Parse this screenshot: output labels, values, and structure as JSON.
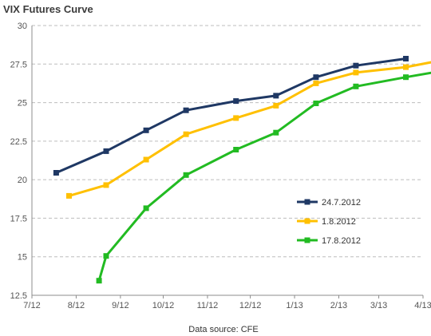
{
  "chart_data": {
    "type": "line",
    "title": "VIX Futures Curve",
    "xlabel": "",
    "ylabel": "",
    "x_ticks": [
      "7/12",
      "8/12",
      "9/12",
      "10/12",
      "11/12",
      "12/12",
      "1/13",
      "2/13",
      "3/13",
      "4/13"
    ],
    "xlim": [
      "2012-07-01",
      "2013-04-01"
    ],
    "ylim": [
      12.5,
      30
    ],
    "y_ticks": [
      12.5,
      15,
      17.5,
      20,
      22.5,
      25,
      27.5,
      30
    ],
    "y_tick_labels": [
      "12.5",
      "15",
      "17.5",
      "20",
      "22.5",
      "25",
      "27.5",
      "30"
    ],
    "grid": {
      "horizontal": true,
      "style": "dashed",
      "vertical": false
    },
    "legend_position": "right-middle",
    "series": [
      {
        "name": "24.7.2012",
        "color": "#1f3864",
        "x": [
          "2012-07-18",
          "2012-08-22",
          "2012-09-19",
          "2012-10-17",
          "2012-11-21",
          "2012-12-19",
          "2013-01-16",
          "2013-02-13",
          "2013-03-20"
        ],
        "values": [
          20.45,
          21.85,
          23.2,
          24.5,
          25.1,
          25.45,
          26.65,
          27.4,
          27.85
        ]
      },
      {
        "name": "1.8.2012",
        "color": "#ffc000",
        "x": [
          "2012-07-27",
          "2012-08-22",
          "2012-09-19",
          "2012-10-17",
          "2012-11-21",
          "2012-12-19",
          "2013-01-16",
          "2013-02-13",
          "2013-03-20",
          "2013-04-17"
        ],
        "values": [
          18.95,
          19.65,
          21.3,
          22.95,
          24.0,
          24.8,
          26.25,
          26.95,
          27.3,
          27.8
        ]
      },
      {
        "name": "17.8.2012",
        "color": "#22bb22",
        "x": [
          "2012-08-17",
          "2012-08-22",
          "2012-09-19",
          "2012-10-17",
          "2012-11-21",
          "2012-12-19",
          "2013-01-16",
          "2013-02-13",
          "2013-03-20",
          "2013-04-17"
        ],
        "values": [
          13.45,
          15.05,
          18.15,
          20.3,
          21.95,
          23.05,
          24.95,
          26.05,
          26.65,
          27.1
        ]
      }
    ],
    "source_note": "Data source: CFE"
  }
}
